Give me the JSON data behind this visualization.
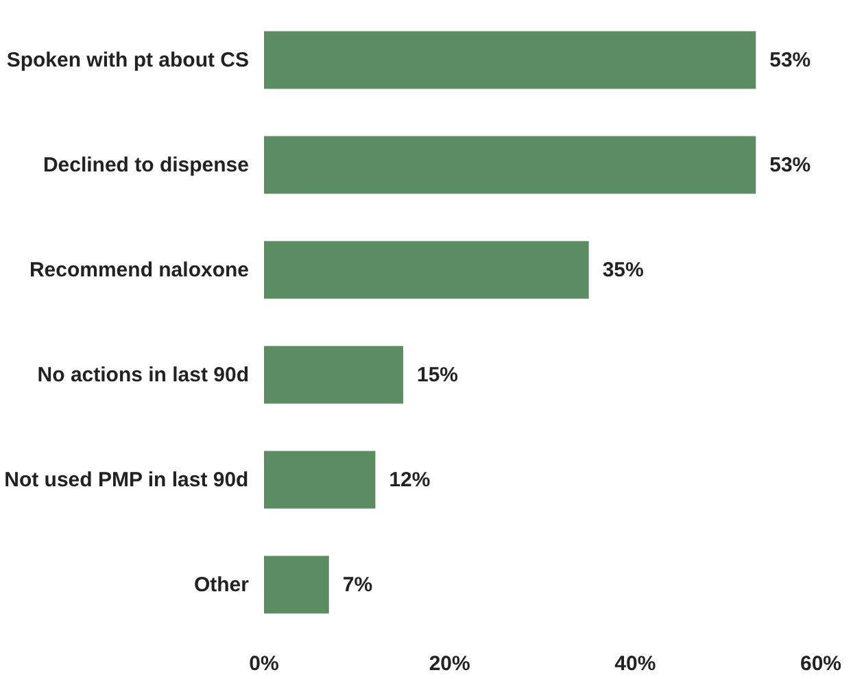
{
  "chart_data": {
    "type": "bar",
    "orientation": "horizontal",
    "categories": [
      "Spoken with pt about CS",
      "Declined to dispense",
      "Recommend naloxone",
      "No actions in last 90d",
      "Not used PMP in last 90d",
      "Other"
    ],
    "values": [
      53,
      53,
      35,
      15,
      12,
      7
    ],
    "value_labels": [
      "53%",
      "53%",
      "35%",
      "15%",
      "12%",
      "7%"
    ],
    "color": "#5b8c62",
    "xlim": [
      0,
      60
    ],
    "xticks": [
      {
        "value": 0,
        "label": "0%"
      },
      {
        "value": 20,
        "label": "20%"
      },
      {
        "value": 40,
        "label": "40%"
      },
      {
        "value": 60,
        "label": "60%"
      }
    ],
    "grid": false
  }
}
